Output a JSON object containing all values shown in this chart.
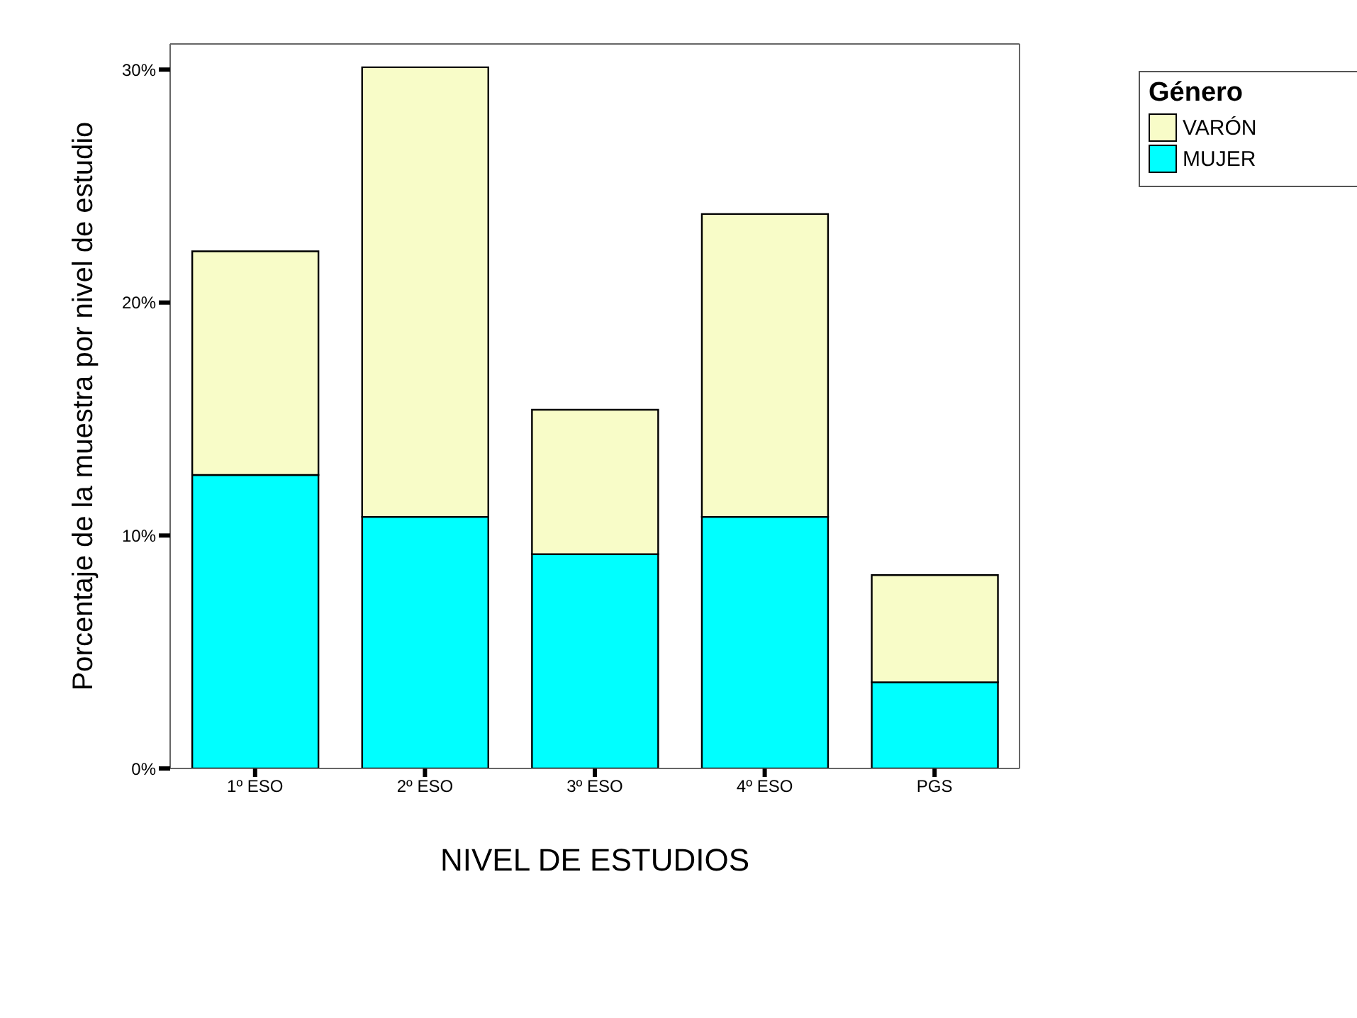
{
  "chart_data": {
    "type": "bar",
    "stacked": true,
    "xlabel": "NIVEL DE ESTUDIOS",
    "ylabel": "Porcentaje de la muestra por nivel de estudio",
    "legend_title": "Género",
    "legend": "top right",
    "grid": false,
    "categories": [
      "1º ESO",
      "2º ESO",
      "3º ESO",
      "4º ESO",
      "PGS"
    ],
    "series": [
      {
        "name": "MUJER",
        "color": "#00ffff",
        "values": [
          12.6,
          10.8,
          9.2,
          10.8,
          3.7
        ]
      },
      {
        "name": "VARÓN",
        "color": "#f8fcc8",
        "values": [
          9.6,
          19.3,
          6.2,
          13.0,
          4.6
        ]
      }
    ],
    "ylim": [
      0,
      31.1
    ],
    "yticks": [
      {
        "value": 0,
        "label": "0%"
      },
      {
        "value": 10,
        "label": "10%"
      },
      {
        "value": 20,
        "label": "20%"
      },
      {
        "value": 30,
        "label": "30%"
      }
    ]
  }
}
